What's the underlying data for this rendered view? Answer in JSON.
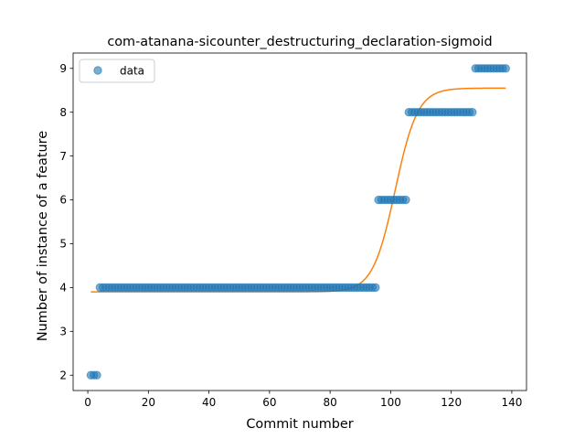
{
  "chart_data": {
    "type": "scatter",
    "title": "com-atanana-sicounter_destructuring_declaration-sigmoid",
    "xlabel": "Commit number",
    "ylabel": "Number of instance of a feature",
    "xlim": [
      -4.85,
      144.85
    ],
    "ylim": [
      1.65,
      9.35
    ],
    "xticks": [
      0,
      20,
      40,
      60,
      80,
      100,
      120,
      140
    ],
    "yticks": [
      2,
      3,
      4,
      5,
      6,
      7,
      8,
      9
    ],
    "legend": {
      "entries": [
        "data"
      ],
      "position": "upper-left"
    },
    "colors": {
      "data": "#1f77b4",
      "fit": "#ff7f0e"
    },
    "series": [
      {
        "name": "data",
        "kind": "scatter",
        "segments": [
          {
            "x_from": 1,
            "x_to": 3,
            "y": 2
          },
          {
            "x_from": 4,
            "x_to": 95,
            "y": 4
          },
          {
            "x_from": 96,
            "x_to": 105,
            "y": 6
          },
          {
            "x_from": 106,
            "x_to": 127,
            "y": 8
          },
          {
            "x_from": 128,
            "x_to": 138,
            "y": 9
          }
        ]
      },
      {
        "kind": "line",
        "model": "sigmoid",
        "params": {
          "L": 4.65,
          "x0": 101.5,
          "k": 0.27,
          "b": 3.9
        },
        "x_range": [
          1,
          138
        ]
      }
    ]
  }
}
